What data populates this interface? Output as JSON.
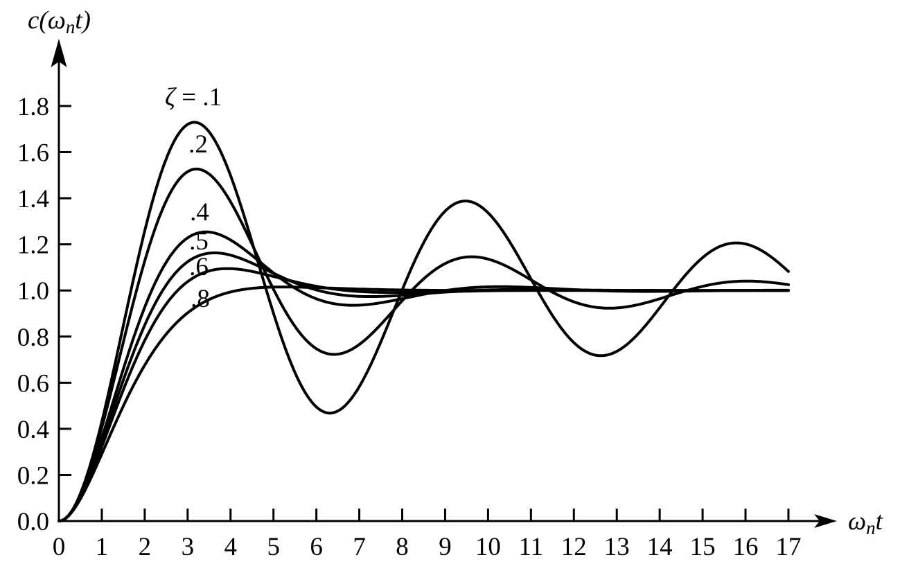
{
  "figure": {
    "background": "#ffffff",
    "ink": "#000000"
  },
  "axis_titles": {
    "y": {
      "pre": "c(ω",
      "sub": "n",
      "post": "t)"
    },
    "x": {
      "pre": "ω",
      "sub": "n",
      "post": "t"
    }
  },
  "chart_data": {
    "type": "line",
    "title": "",
    "xlabel": "ωₙt",
    "ylabel": "c(ωₙt)",
    "xlim": [
      0,
      17
    ],
    "ylim": [
      0,
      1.9
    ],
    "grid": false,
    "legend": "inline labels at curve peaks",
    "curve_formula": "c(x) = 1 − e^(−ζx)·[cos(√(1−ζ²)·x) + (ζ/√(1−ζ²))·sin(√(1−ζ²)·x)], where x = ωₙt",
    "x_ticks": [
      0,
      1,
      2,
      3,
      4,
      5,
      6,
      7,
      8,
      9,
      10,
      11,
      12,
      13,
      14,
      15,
      16,
      17
    ],
    "y_ticks": [
      {
        "label": "0.0",
        "value": 0.0
      },
      {
        "label": "0.2",
        "value": 0.2
      },
      {
        "label": "0.4",
        "value": 0.4
      },
      {
        "label": "0.6",
        "value": 0.6
      },
      {
        "label": "0.8",
        "value": 0.8
      },
      {
        "label": "1.0",
        "value": 1.0
      },
      {
        "label": "1.2",
        "value": 1.2
      },
      {
        "label": "1.4",
        "value": 1.4
      },
      {
        "label": "1.6",
        "value": 1.6
      },
      {
        "label": "1.8",
        "value": 1.8
      }
    ],
    "sample_x": [
      0,
      1,
      2,
      3,
      4,
      5,
      6,
      7,
      8,
      9,
      10,
      11,
      12,
      13,
      14,
      15,
      16,
      17
    ],
    "series": [
      {
        "name": "ζ = .1",
        "zeta": 0.1,
        "label_parts": [
          {
            "t": "ζ",
            "i": true
          },
          {
            "t": " = .1",
            "i": false
          }
        ],
        "label_anchor": {
          "x": 2.47,
          "y": 1.803,
          "align": "start"
        },
        "first_peak": {
          "x": 3.16,
          "value": 1.73
        },
        "values": [
          0,
          0.431,
          1.258,
          1.72,
          1.498,
          0.901,
          0.495,
          0.583,
          1.003,
          1.344,
          1.337,
          1.05,
          0.774,
          0.736,
          0.925,
          1.142,
          1.202,
          1.082
        ]
      },
      {
        "name": ".2",
        "zeta": 0.2,
        "label_parts": [
          {
            "t": ".2",
            "i": false
          }
        ],
        "label_anchor": {
          "x": 3.245,
          "y": 1.599,
          "align": "middle"
        },
        "first_peak": {
          "x": 3.21,
          "value": 1.53
        },
        "values": [
          0,
          0.405,
          1.128,
          1.515,
          1.384,
          1.006,
          0.747,
          0.766,
          0.956,
          1.117,
          1.136,
          1.046,
          0.951,
          0.924,
          0.964,
          1.018,
          1.04,
          1.025
        ]
      },
      {
        "name": ".4",
        "zeta": 0.4,
        "label_parts": [
          {
            "t": ".4",
            "i": false
          }
        ],
        "label_anchor": {
          "x": 3.277,
          "y": 1.304,
          "align": "middle"
        },
        "first_peak": {
          "x": 3.43,
          "value": 1.25
        },
        "values": [
          0,
          0.36,
          0.927,
          1.228,
          1.219,
          1.076,
          0.964,
          0.936,
          0.964,
          0.999,
          1.016,
          1.013,
          1.004,
          0.997,
          0.996,
          0.998,
          1.0,
          1.001
        ]
      },
      {
        "name": ".5",
        "zeta": 0.5,
        "label_parts": [
          {
            "t": ".5",
            "i": false
          }
        ],
        "label_anchor": {
          "x": 3.261,
          "y": 1.178,
          "align": "middle"
        },
        "first_peak": {
          "x": 3.63,
          "value": 1.16
        },
        "values": [
          0,
          0.34,
          0.849,
          1.124,
          1.153,
          1.075,
          1.002,
          0.974,
          0.979,
          0.993,
          1.002,
          1.004,
          1.003,
          1.0,
          0.999,
          0.999,
          1.0,
          1.0
        ]
      },
      {
        "name": ".6",
        "zeta": 0.6,
        "label_parts": [
          {
            "t": ".6",
            "i": false
          }
        ],
        "label_anchor": {
          "x": 3.261,
          "y": 1.067,
          "align": "middle"
        },
        "first_peak": {
          "x": 3.93,
          "value": 1.09
        },
        "values": [
          0,
          0.322,
          0.783,
          1.038,
          1.095,
          1.061,
          1.018,
          0.995,
          0.991,
          0.995,
          0.999,
          1.001,
          1.0,
          1.0,
          1.0,
          1.0,
          1.0,
          1.0
        ]
      },
      {
        "name": ".8",
        "zeta": 0.8,
        "label_parts": [
          {
            "t": ".8",
            "i": false
          }
        ],
        "label_anchor": {
          "x": 3.293,
          "y": 0.928,
          "align": "middle"
        },
        "first_peak": {
          "x": 5.24,
          "value": 1.02
        },
        "values": [
          0,
          0.291,
          0.676,
          0.903,
          0.993,
          1.015,
          1.012,
          1.006,
          1.002,
          1.001,
          1.0,
          1.0,
          1.0,
          1.0,
          1.0,
          1.0,
          1.0,
          1.0
        ]
      }
    ]
  }
}
